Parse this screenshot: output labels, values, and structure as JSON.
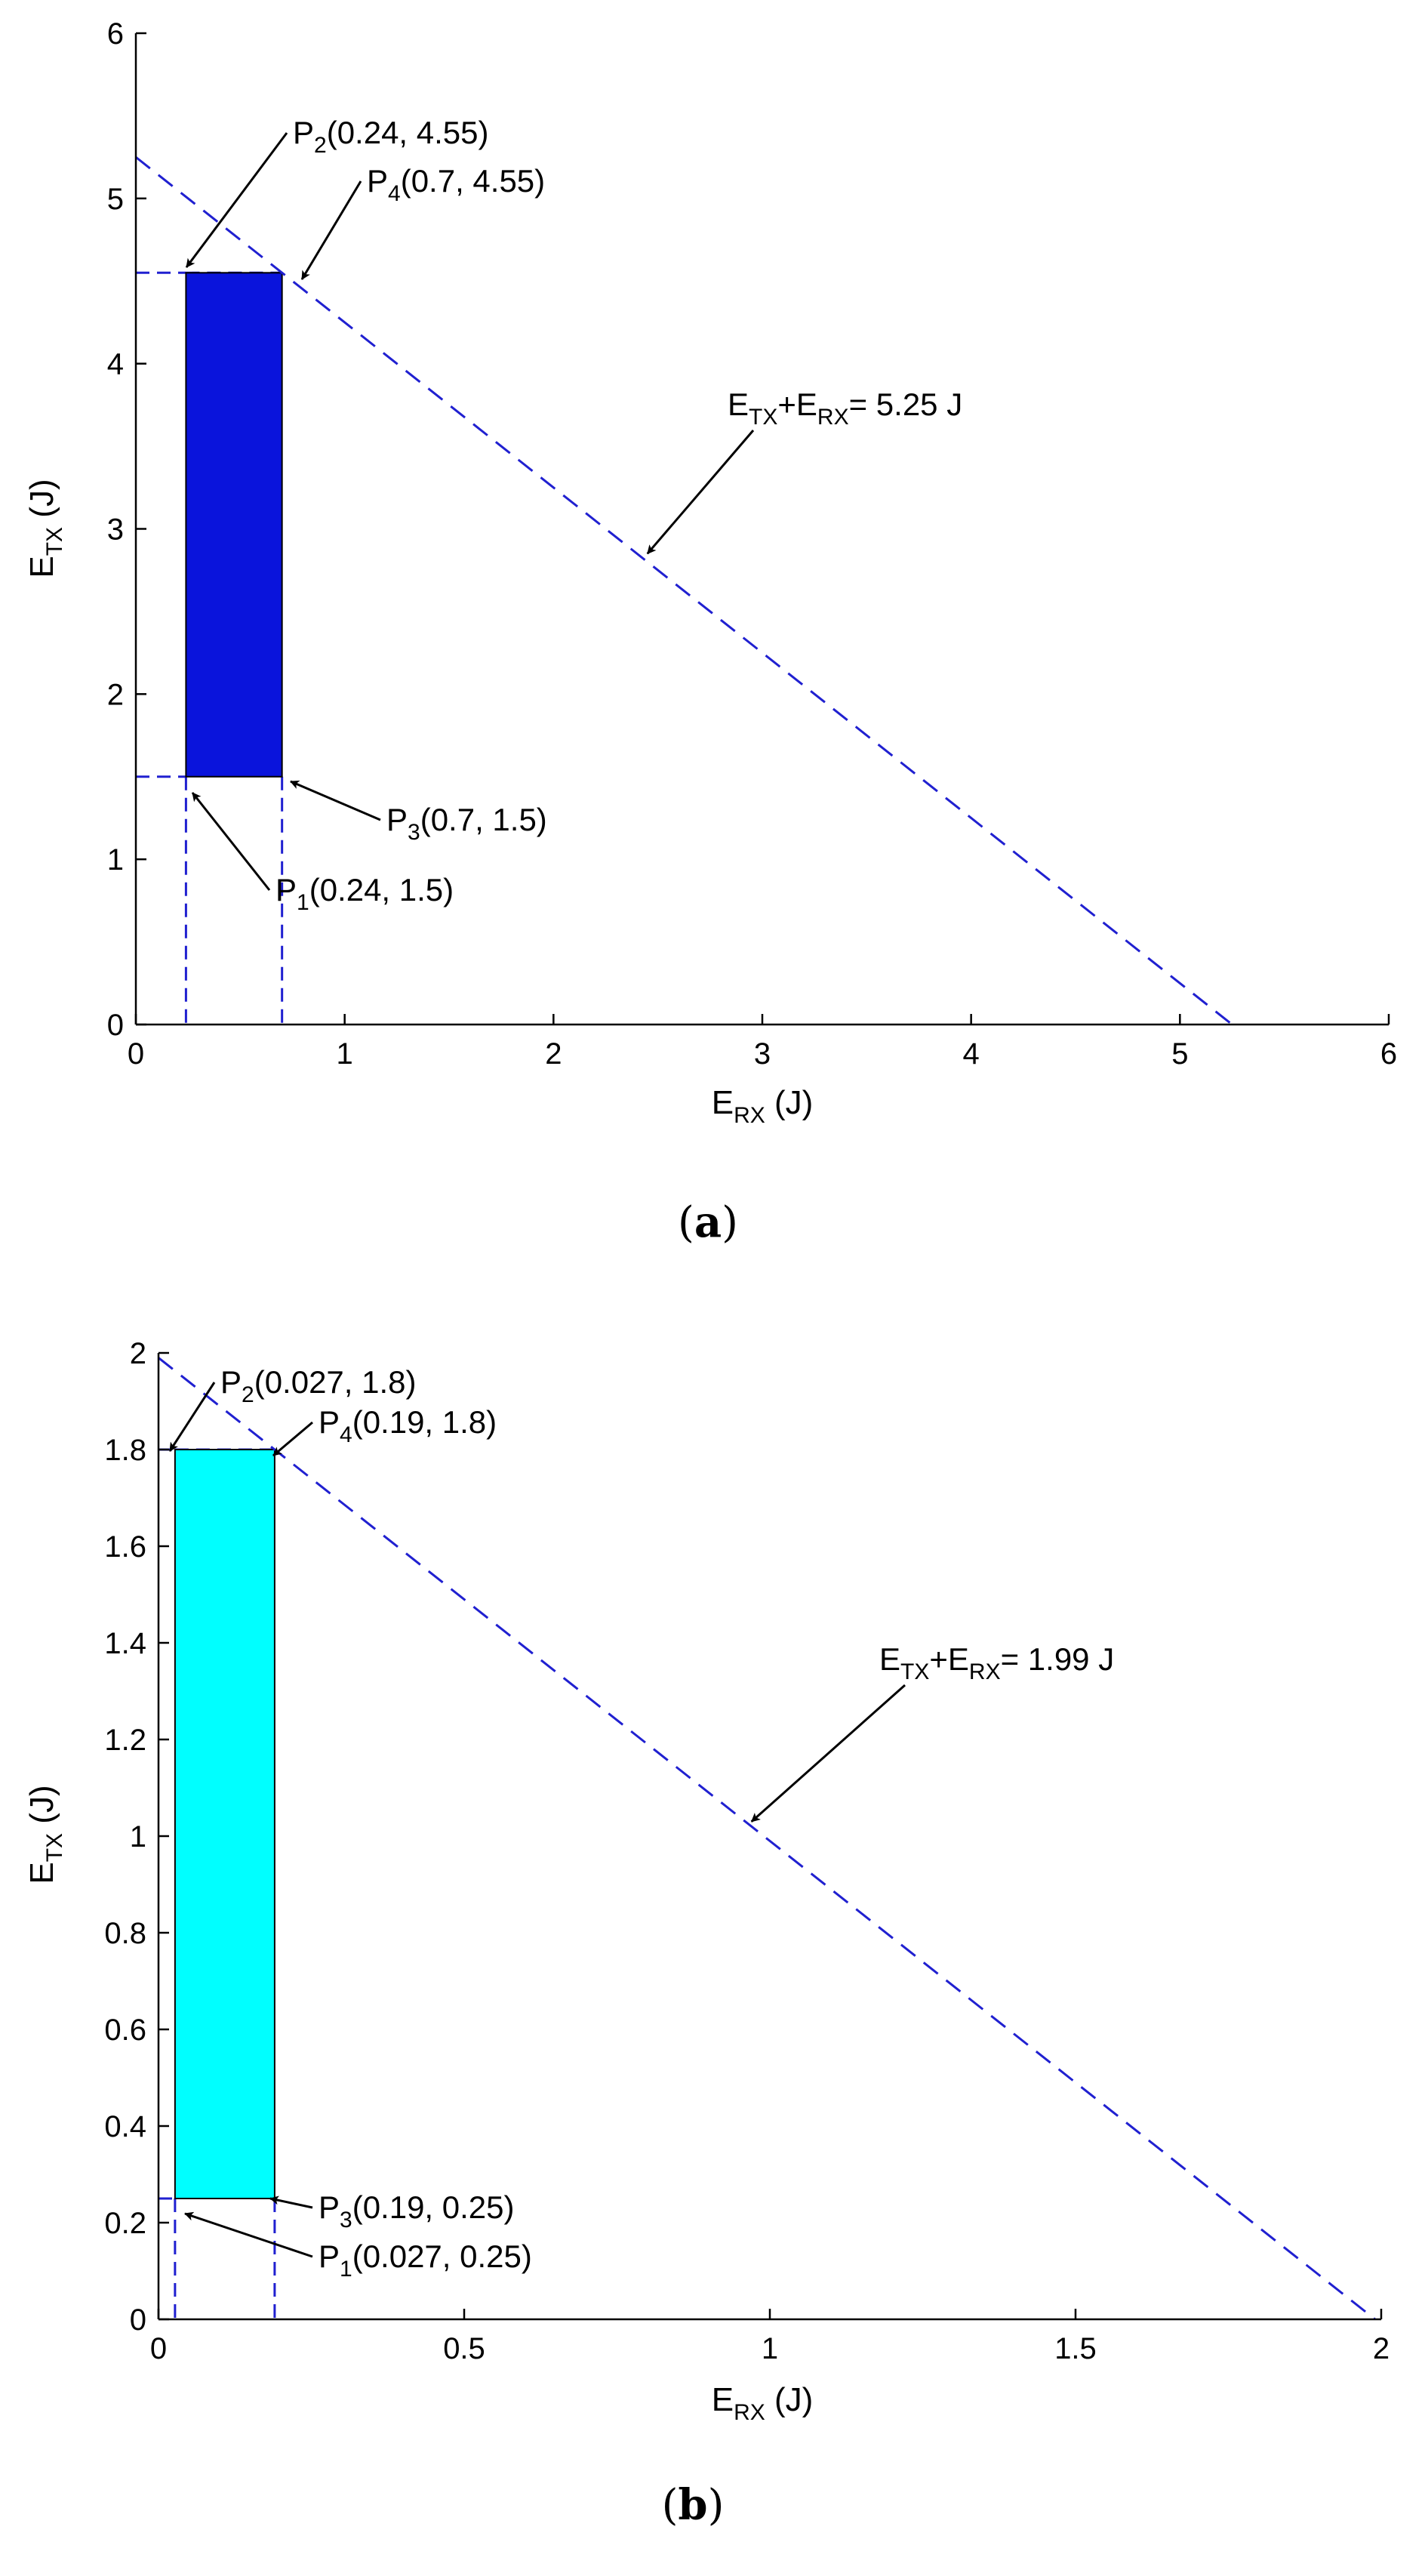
{
  "chart_data": [
    {
      "panel_label": "a",
      "type": "area",
      "xlabel": {
        "main": "E",
        "sub": "RX",
        "tail": " (J)"
      },
      "ylabel": {
        "main": "E",
        "sub": "TX",
        "tail": " (J)"
      },
      "xlim": [
        0,
        6
      ],
      "ylim": [
        0,
        6
      ],
      "xticks": [
        "0",
        "1",
        "2",
        "3",
        "4",
        "5",
        "6"
      ],
      "yticks": [
        "0",
        "1",
        "2",
        "3",
        "4",
        "5",
        "6"
      ],
      "grid": false,
      "region": {
        "x": [
          0.24,
          0.7
        ],
        "y": [
          1.5,
          4.55
        ],
        "fill": "#0a14dc"
      },
      "line": {
        "x": [
          0,
          5.25
        ],
        "y": [
          5.25,
          0
        ],
        "color": "#2020d0",
        "style": "dashed"
      },
      "guides": {
        "x": [
          0.24,
          0.7
        ],
        "y": [
          1.5,
          4.55
        ]
      },
      "points": [
        {
          "pre": "P",
          "sub": "2",
          "tail": "(0.24, 4.55)",
          "x": 0.24,
          "y": 4.55
        },
        {
          "pre": "P",
          "sub": "4",
          "tail": "(0.7, 4.55)",
          "x": 0.7,
          "y": 4.55
        },
        {
          "pre": "P",
          "sub": "3",
          "tail": "(0.7, 1.5)",
          "x": 0.7,
          "y": 1.5
        },
        {
          "pre": "P",
          "sub": "1",
          "tail": "(0.24, 1.5)",
          "x": 0.24,
          "y": 1.5
        }
      ],
      "line_annotation": {
        "e1": "E",
        "s1": "TX",
        "plus": "+E",
        "s2": "RX",
        "tail": "= 5.25 J",
        "x": 2.45,
        "y": 2.85
      }
    },
    {
      "panel_label": "b",
      "type": "area",
      "xlabel": {
        "main": "E",
        "sub": "RX",
        "tail": " (J)"
      },
      "ylabel": {
        "main": "E",
        "sub": "TX",
        "tail": " (J)"
      },
      "xlim": [
        0,
        2
      ],
      "ylim": [
        0,
        2
      ],
      "xticks": [
        "0",
        "0.5",
        "1",
        "1.5",
        "2"
      ],
      "yticks": [
        "0",
        "0.2",
        "0.4",
        "0.6",
        "0.8",
        "1",
        "1.2",
        "1.4",
        "1.6",
        "1.8",
        "2"
      ],
      "grid": false,
      "region": {
        "x": [
          0.027,
          0.19
        ],
        "y": [
          0.25,
          1.8
        ],
        "fill": "#00ffff"
      },
      "line": {
        "x": [
          0,
          1.99
        ],
        "y": [
          1.99,
          0
        ],
        "color": "#2020d0",
        "style": "dashed"
      },
      "guides": {
        "x": [
          0.027,
          0.19
        ],
        "y": [
          0.25,
          1.8
        ]
      },
      "points": [
        {
          "pre": "P",
          "sub": "2",
          "tail": "(0.027, 1.8)",
          "x": 0.027,
          "y": 1.8
        },
        {
          "pre": "P",
          "sub": "4",
          "tail": "(0.19, 1.8)",
          "x": 0.19,
          "y": 1.8
        },
        {
          "pre": "P",
          "sub": "3",
          "tail": "(0.19, 0.25)",
          "x": 0.19,
          "y": 0.25
        },
        {
          "pre": "P",
          "sub": "1",
          "tail": "(0.027, 0.25)",
          "x": 0.027,
          "y": 0.25
        }
      ],
      "line_annotation": {
        "e1": "E",
        "s1": "TX",
        "plus": "+E",
        "s2": "RX",
        "tail": "= 1.99 J",
        "x": 0.97,
        "y": 1.03
      }
    }
  ]
}
